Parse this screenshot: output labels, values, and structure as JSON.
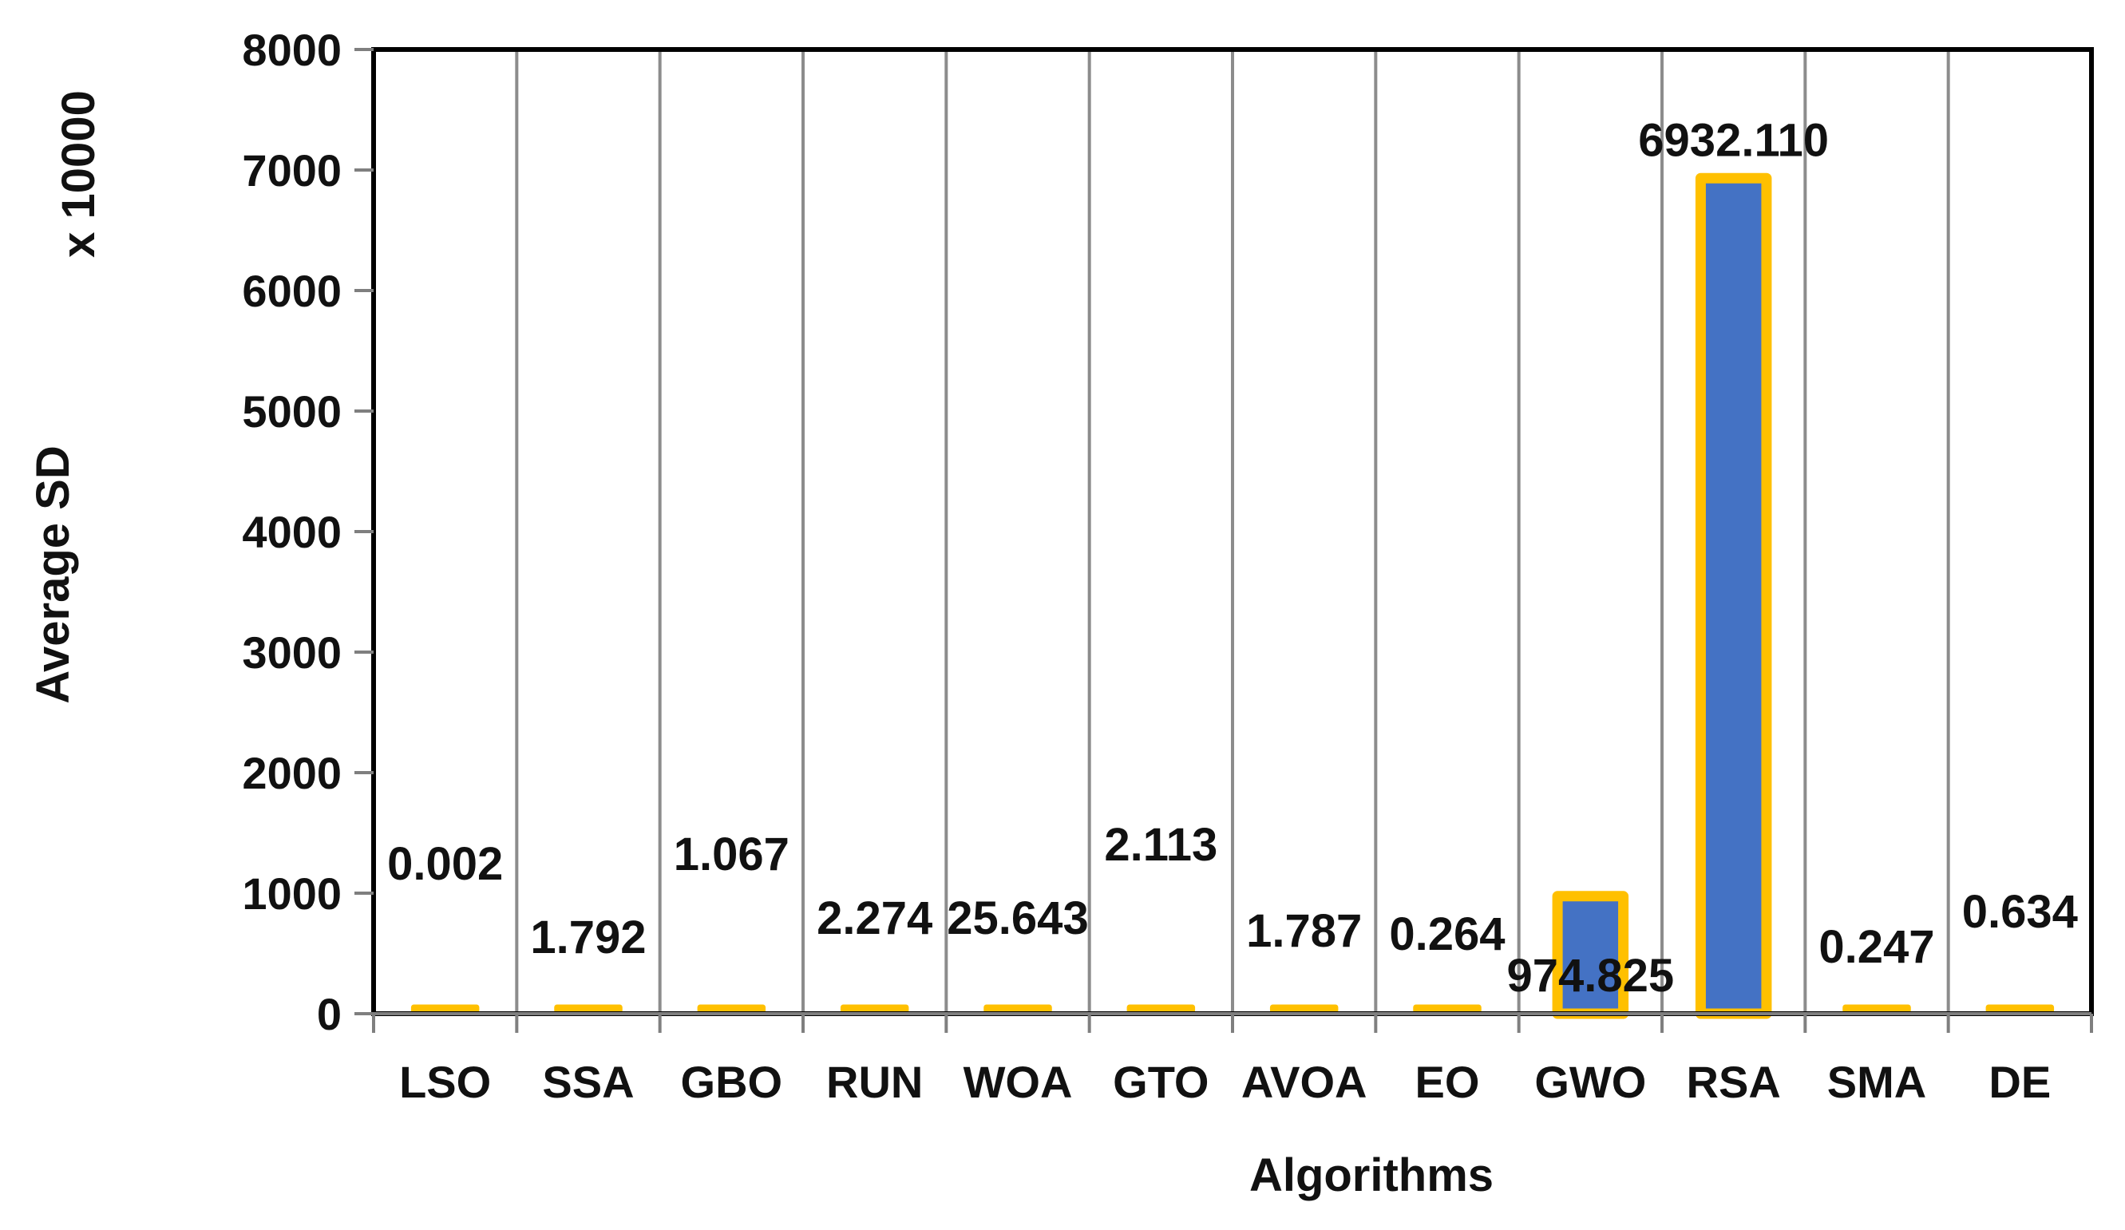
{
  "chart_data": {
    "type": "bar",
    "title": "",
    "categories": [
      "LSO",
      "SSA",
      "GBO",
      "RUN",
      "WOA",
      "GTO",
      "AVOA",
      "EO",
      "GWO",
      "RSA",
      "SMA",
      "DE"
    ],
    "values": [
      0.002,
      1.792,
      1.067,
      2.274,
      25.643,
      2.113,
      1.787,
      0.264,
      974.825,
      6932.11,
      0.247,
      0.634
    ],
    "data_labels": [
      "0.002",
      "1.792",
      "1.067",
      "2.274",
      "25.643",
      "2.113",
      "1.787",
      "0.264",
      "974.825",
      "6932.110",
      "0.247",
      "0.634"
    ],
    "xlabel": "Algorithms",
    "ylabel": "Average SD",
    "y_multiplier_label": "x 10000",
    "ylim": [
      0,
      8000
    ],
    "yticks": [
      "0",
      "1000",
      "2000",
      "3000",
      "4000",
      "5000",
      "6000",
      "7000",
      "8000"
    ],
    "grid": "vertical",
    "colors": {
      "bar_fill": "#4472C4",
      "bar_border": "#FFC000",
      "grid": "#8C8C8C",
      "frame": "#000000"
    }
  }
}
